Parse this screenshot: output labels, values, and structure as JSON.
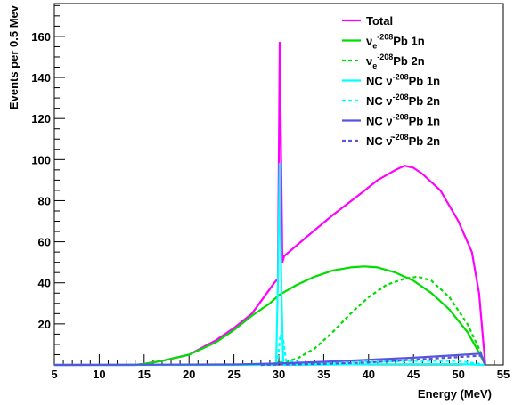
{
  "chart_data": {
    "type": "line",
    "title": "",
    "xlabel": "Energy (MeV)",
    "ylabel": "Events per 0.5 Mev",
    "xlim": [
      5,
      55
    ],
    "ylim": [
      0,
      176
    ],
    "x_ticks": [
      5,
      10,
      15,
      20,
      25,
      30,
      35,
      40,
      45,
      50,
      55
    ],
    "y_ticks": [
      20,
      40,
      60,
      80,
      100,
      120,
      140,
      160
    ],
    "grid": false,
    "legend_position": "top-right",
    "series": [
      {
        "name": "Total",
        "legend": {
          "pre": "Total",
          "sup": "",
          "post": ""
        },
        "color": "#ff00ff",
        "dash": "solid",
        "points": [
          [
            5,
            0
          ],
          [
            14,
            0
          ],
          [
            15,
            0.5
          ],
          [
            17,
            2
          ],
          [
            20,
            5
          ],
          [
            23,
            12
          ],
          [
            25,
            18
          ],
          [
            27,
            25
          ],
          [
            29.5,
            40
          ],
          [
            29.9,
            42
          ],
          [
            30.1,
            157
          ],
          [
            30.4,
            50
          ],
          [
            30.6,
            53
          ],
          [
            33,
            62
          ],
          [
            36,
            73
          ],
          [
            39,
            83
          ],
          [
            41,
            90
          ],
          [
            43,
            95
          ],
          [
            44,
            97
          ],
          [
            45,
            96
          ],
          [
            46,
            93
          ],
          [
            48,
            85
          ],
          [
            50,
            70
          ],
          [
            51.5,
            55
          ],
          [
            52.3,
            35
          ],
          [
            52.8,
            10
          ],
          [
            53,
            0
          ]
        ]
      },
      {
        "name": "νe-208Pb 1n",
        "legend": {
          "pre": "ν",
          "sub": "e",
          "sup": "-208",
          "post": "Pb 1n"
        },
        "color": "#00dd00",
        "dash": "solid",
        "points": [
          [
            5,
            0
          ],
          [
            14,
            0
          ],
          [
            15,
            0.5
          ],
          [
            17,
            2
          ],
          [
            20,
            5
          ],
          [
            23,
            11
          ],
          [
            25,
            17
          ],
          [
            27,
            24
          ],
          [
            29,
            30
          ],
          [
            30,
            34
          ],
          [
            32,
            39
          ],
          [
            34,
            43
          ],
          [
            36,
            46
          ],
          [
            38,
            47.5
          ],
          [
            39.5,
            48
          ],
          [
            41,
            47.5
          ],
          [
            43,
            45
          ],
          [
            45,
            41
          ],
          [
            47,
            35
          ],
          [
            49,
            27
          ],
          [
            51,
            16
          ],
          [
            52.3,
            6
          ],
          [
            53,
            0
          ]
        ]
      },
      {
        "name": "νe-208Pb 2n",
        "legend": {
          "pre": "ν",
          "sub": "e",
          "sup": "-208",
          "post": "Pb 2n"
        },
        "color": "#00dd00",
        "dash": "dashed",
        "points": [
          [
            28,
            0
          ],
          [
            30,
            1
          ],
          [
            32,
            3
          ],
          [
            34,
            8
          ],
          [
            36,
            16
          ],
          [
            38,
            25
          ],
          [
            40,
            33
          ],
          [
            42,
            39
          ],
          [
            44,
            42
          ],
          [
            45.5,
            43
          ],
          [
            47,
            41
          ],
          [
            49,
            33
          ],
          [
            51,
            20
          ],
          [
            52.5,
            6
          ],
          [
            53,
            0
          ]
        ]
      },
      {
        "name": "NC ν-208Pb 1n",
        "legend": {
          "pre": "NC ν",
          "sup": "-208",
          "post": "Pb 1n"
        },
        "color": "#00ffff",
        "dash": "solid",
        "points": [
          [
            5,
            0
          ],
          [
            29.7,
            0
          ],
          [
            29.9,
            40
          ],
          [
            30.1,
            98
          ],
          [
            30.3,
            35
          ],
          [
            30.5,
            0
          ],
          [
            40,
            0.3
          ],
          [
            50,
            0.4
          ],
          [
            53,
            0
          ]
        ]
      },
      {
        "name": "NC ν-208Pb 2n",
        "legend": {
          "pre": "NC ν",
          "sup": "-208",
          "post": "Pb 2n"
        },
        "color": "#00ffff",
        "dash": "dashed",
        "points": [
          [
            29.8,
            0
          ],
          [
            30.2,
            15
          ],
          [
            30.5,
            12
          ],
          [
            30.8,
            2
          ],
          [
            33,
            1
          ],
          [
            40,
            1.5
          ],
          [
            45,
            2
          ],
          [
            50,
            2
          ],
          [
            53,
            0
          ]
        ]
      },
      {
        "name": "NC ν̄-208Pb 1n",
        "legend": {
          "pre": "NC ν̄",
          "sup": "-208",
          "post": "Pb 1n"
        },
        "color": "#5555dd",
        "dash": "solid",
        "points": [
          [
            5,
            0
          ],
          [
            25,
            0.2
          ],
          [
            30,
            0.7
          ],
          [
            35,
            1.5
          ],
          [
            40,
            2.5
          ],
          [
            45,
            3.5
          ],
          [
            50,
            4.8
          ],
          [
            52.5,
            5.5
          ],
          [
            53,
            0
          ]
        ]
      },
      {
        "name": "NC ν̄-208Pb 2n",
        "legend": {
          "pre": "NC ν̄",
          "sup": "-208",
          "post": "Pb 2n"
        },
        "color": "#5555dd",
        "dash": "dashed",
        "points": [
          [
            28,
            0
          ],
          [
            35,
            0.5
          ],
          [
            40,
            1.2
          ],
          [
            45,
            2.5
          ],
          [
            50,
            3.8
          ],
          [
            52.5,
            4.5
          ],
          [
            53,
            0
          ]
        ]
      }
    ]
  }
}
